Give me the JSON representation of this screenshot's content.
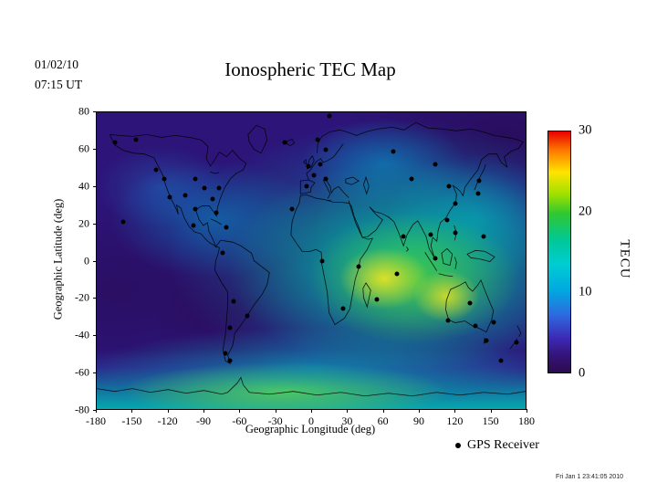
{
  "header": {
    "date": "01/02/10",
    "time": "07:15 UT",
    "title": "Ionospheric TEC Map"
  },
  "footer": {
    "render_timestamp": "Fri Jan  1 23:41:05 2010"
  },
  "chart_data": {
    "type": "heatmap",
    "title": "Ionospheric TEC Map",
    "epoch": {
      "date": "01/02/10",
      "time_ut": "07:15 UT"
    },
    "xlabel": "Geographic Longitude (deg)",
    "ylabel": "Geographic Latitude (deg)",
    "xlim": [
      -180,
      180
    ],
    "ylim": [
      -80,
      80
    ],
    "xticks": [
      -180,
      -150,
      -120,
      -90,
      -60,
      -30,
      0,
      30,
      60,
      90,
      120,
      150,
      180
    ],
    "yticks": [
      80,
      60,
      40,
      20,
      0,
      -20,
      -40,
      -60,
      -80
    ],
    "grid": false,
    "legend_label": "GPS Receiver",
    "colorbar": {
      "label": "TECU",
      "min": 0,
      "max": 30,
      "ticks": [
        30,
        20,
        10,
        0
      ],
      "gradient_top_to_bottom": [
        "#e80000 0%",
        "#ff7a00 8%",
        "#ffe400 17%",
        "#a0e000 26%",
        "#30c830 34%",
        "#00c896 45%",
        "#00cdd2 55%",
        "#00a8e0 66%",
        "#2e6ae0 76%",
        "#3c28b4 86%",
        "#341478 93%",
        "#2e0a50 100%"
      ]
    },
    "tec_field_summary": [
      {
        "region": "equatorial Indian Ocean daytime peak",
        "lon": 62,
        "lat": -8,
        "tec_tecu": 25
      },
      {
        "region": "Indonesia / NW Australia peak",
        "lon": 112,
        "lat": -18,
        "tec_tecu": 24
      },
      {
        "region": "broad daytime enhancement Africa-Asia-Australia",
        "lon": 80,
        "lat": 0,
        "tec_tecu": 15
      },
      {
        "region": "southern band near Antarctica",
        "lon": 0,
        "lat": -68,
        "tec_tecu": 18
      },
      {
        "region": "Caribbean / eastern Pacific moderate",
        "lon": -85,
        "lat": 23,
        "tec_tecu": 10
      },
      {
        "region": "nightside South America minimum",
        "lon": -55,
        "lat": -25,
        "tec_tecu": 2
      },
      {
        "region": "north polar background",
        "lon": 0,
        "lat": 70,
        "tec_tecu": 5
      }
    ],
    "gps_receivers": [
      [
        -165,
        64
      ],
      [
        -147,
        65
      ],
      [
        -130,
        49
      ],
      [
        -123,
        44
      ],
      [
        -119,
        34
      ],
      [
        -106,
        35
      ],
      [
        -97,
        44
      ],
      [
        -90,
        39
      ],
      [
        -83,
        33
      ],
      [
        -77,
        39
      ],
      [
        -80,
        26
      ],
      [
        -97,
        28
      ],
      [
        -99,
        19
      ],
      [
        -158,
        21
      ],
      [
        -71,
        18
      ],
      [
        -74,
        4
      ],
      [
        -65,
        -22
      ],
      [
        -54,
        -30
      ],
      [
        -68,
        -36
      ],
      [
        -72,
        -50
      ],
      [
        -68,
        -54
      ],
      [
        -22,
        64
      ],
      [
        5,
        65
      ],
      [
        12,
        60
      ],
      [
        8,
        52
      ],
      [
        -2,
        51
      ],
      [
        2,
        46
      ],
      [
        12,
        44
      ],
      [
        -4,
        40
      ],
      [
        -16,
        28
      ],
      [
        15,
        78
      ],
      [
        9,
        0
      ],
      [
        40,
        -3
      ],
      [
        27,
        -26
      ],
      [
        55,
        -21
      ],
      [
        69,
        59
      ],
      [
        84,
        44
      ],
      [
        104,
        52
      ],
      [
        116,
        40
      ],
      [
        121,
        31
      ],
      [
        114,
        22
      ],
      [
        140,
        36
      ],
      [
        141,
        43
      ],
      [
        77,
        13
      ],
      [
        72,
        -7
      ],
      [
        100,
        14
      ],
      [
        104,
        1
      ],
      [
        121,
        15
      ],
      [
        145,
        13
      ],
      [
        115,
        -32
      ],
      [
        133,
        -23
      ],
      [
        138,
        -35
      ],
      [
        153,
        -33
      ],
      [
        147,
        -43
      ],
      [
        159,
        -54
      ],
      [
        172,
        -44
      ]
    ]
  }
}
